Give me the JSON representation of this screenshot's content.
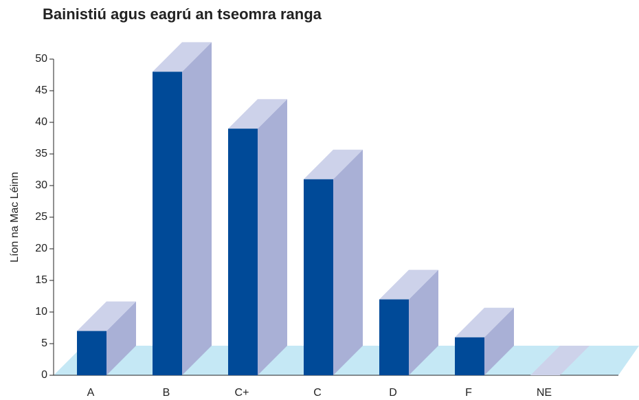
{
  "chart_data": {
    "type": "bar3d",
    "title": "Bainistiú agus eagrú an tseomra ranga",
    "y_label": "Líon na Mac Léinn",
    "categories": [
      "A",
      "B",
      "C+",
      "C",
      "D",
      "F",
      "NE"
    ],
    "values": [
      7,
      48,
      39,
      31,
      12,
      6,
      0
    ],
    "color": "#004a98",
    "side_color": "#a9b0d6",
    "top_color": "#cdd2ea",
    "floor_color": "#c5e8f5",
    "ylim": [
      0,
      50
    ],
    "yticks": [
      0,
      5,
      10,
      15,
      20,
      25,
      30,
      35,
      40,
      45,
      50
    ]
  }
}
